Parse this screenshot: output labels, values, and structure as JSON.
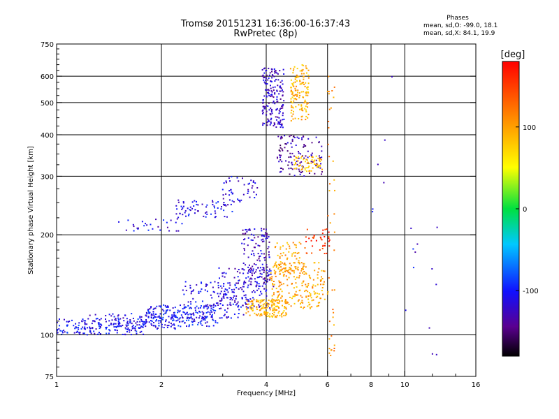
{
  "header": {
    "title_line1": "Tromsø 20151231 16:36:00-16:37:43",
    "title_line2": "RwPretec (8p)",
    "phase_title": "Phases",
    "phase_o_stats": "mean, sd,O: -99.0, 18.1",
    "phase_x_stats": "mean, sd,X:  84.1, 19.9"
  },
  "colorbar": {
    "unit_label": "deg",
    "ticks": [
      {
        "value": 100,
        "label": "100"
      },
      {
        "value": 0,
        "label": "0"
      },
      {
        "value": -100,
        "label": "-100"
      }
    ],
    "range": [
      -180,
      180
    ]
  },
  "chart_data": {
    "type": "scatter",
    "title": "Tromsø 20151231 16:36:00-16:37:43",
    "subtitle": "RwPretec (8p)",
    "xlabel": "Frequency [MHz]",
    "ylabel": "Stationary phase Virtual Height [km]",
    "xscale": "log",
    "yscale": "log",
    "xlim": [
      1,
      16
    ],
    "ylim": [
      75,
      750
    ],
    "x_ticks": [
      {
        "value": 1,
        "label": "1"
      },
      {
        "value": 2,
        "label": "2"
      },
      {
        "value": 4,
        "label": "4"
      },
      {
        "value": 6,
        "label": "6"
      },
      {
        "value": 8,
        "label": "8"
      },
      {
        "value": 10,
        "label": "10"
      },
      {
        "value": 16,
        "label": "16"
      }
    ],
    "x_grid": [
      2,
      4,
      6,
      8,
      10
    ],
    "y_ticks": [
      {
        "value": 75,
        "label": "75"
      },
      {
        "value": 100,
        "label": "100"
      },
      {
        "value": 200,
        "label": "200"
      },
      {
        "value": 300,
        "label": "300"
      },
      {
        "value": 400,
        "label": "400"
      },
      {
        "value": 500,
        "label": "500"
      },
      {
        "value": 600,
        "label": "600"
      },
      {
        "value": 750,
        "label": "750"
      }
    ],
    "y_grid": [
      100,
      200,
      300,
      400,
      500,
      600
    ],
    "color_scale_label": "deg",
    "color_range": [
      -180,
      180
    ],
    "clusters": [
      {
        "x_range": [
          1.0,
          1.8
        ],
        "y_range": [
          100,
          112
        ],
        "phase": -105,
        "count": 170
      },
      {
        "x_range": [
          1.2,
          2.3
        ],
        "y_range": [
          104,
          116
        ],
        "phase": -112,
        "count": 90
      },
      {
        "x_range": [
          1.8,
          2.9
        ],
        "y_range": [
          106,
          123
        ],
        "phase": -102,
        "count": 200
      },
      {
        "x_range": [
          2.3,
          3.5
        ],
        "y_range": [
          112,
          145
        ],
        "phase": -110,
        "count": 130
      },
      {
        "x_range": [
          2.9,
          4.2
        ],
        "y_range": [
          120,
          160
        ],
        "phase": -118,
        "count": 150
      },
      {
        "x_range": [
          3.4,
          4.1
        ],
        "y_range": [
          140,
          210
        ],
        "phase": -124,
        "count": 120
      },
      {
        "x_range": [
          3.5,
          4.6
        ],
        "y_range": [
          113,
          128
        ],
        "phase": 92,
        "count": 150
      },
      {
        "x_range": [
          4.1,
          5.9
        ],
        "y_range": [
          120,
          165
        ],
        "phase": 96,
        "count": 200
      },
      {
        "x_range": [
          4.2,
          5.2
        ],
        "y_range": [
          150,
          190
        ],
        "phase": 100,
        "count": 90
      },
      {
        "x_range": [
          5.2,
          6.1
        ],
        "y_range": [
          175,
          210
        ],
        "phase": 155,
        "count": 35
      },
      {
        "x_range": [
          1.5,
          2.3
        ],
        "y_range": [
          205,
          225
        ],
        "phase": -112,
        "count": 30
      },
      {
        "x_range": [
          2.2,
          3.2
        ],
        "y_range": [
          225,
          255
        ],
        "phase": -110,
        "count": 70
      },
      {
        "x_range": [
          3.0,
          3.8
        ],
        "y_range": [
          250,
          300
        ],
        "phase": -115,
        "count": 45
      },
      {
        "x_range": [
          3.9,
          4.5
        ],
        "y_range": [
          420,
          640
        ],
        "phase": -125,
        "count": 180
      },
      {
        "x_range": [
          4.7,
          5.3
        ],
        "y_range": [
          440,
          650
        ],
        "phase": 92,
        "count": 140
      },
      {
        "x_range": [
          4.3,
          5.8
        ],
        "y_range": [
          300,
          400
        ],
        "phase": -135,
        "count": 120
      },
      {
        "x_range": [
          4.8,
          5.8
        ],
        "y_range": [
          310,
          345
        ],
        "phase": 82,
        "count": 60
      },
      {
        "x_range": [
          6.0,
          6.3
        ],
        "y_range": [
          85,
          610
        ],
        "phase": 110,
        "count": 45
      },
      {
        "x_range": [
          7.2,
          12.8
        ],
        "y_range": [
          85,
          640
        ],
        "phase": -110,
        "count": 18
      }
    ]
  }
}
